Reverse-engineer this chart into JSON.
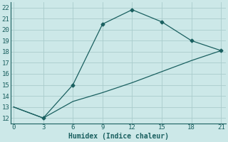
{
  "xlabel": "Humidex (Indice chaleur)",
  "ylabel": "",
  "bg_color": "#cce8e8",
  "grid_color": "#aacccc",
  "line_color": "#1a6060",
  "upper_x": [
    0,
    3,
    6,
    9,
    12,
    15,
    18,
    21
  ],
  "upper_y": [
    13,
    12,
    15,
    20.5,
    21.8,
    20.7,
    19.0,
    18.1
  ],
  "lower_x": [
    0,
    3,
    6,
    9,
    12,
    15,
    18,
    21
  ],
  "lower_y": [
    13,
    12,
    13.5,
    14.3,
    15.2,
    16.2,
    17.2,
    18.1
  ],
  "xlim": [
    -0.3,
    21.5
  ],
  "ylim": [
    11.5,
    22.5
  ],
  "xticks": [
    0,
    3,
    6,
    9,
    12,
    15,
    18,
    21
  ],
  "yticks": [
    12,
    13,
    14,
    15,
    16,
    17,
    18,
    19,
    20,
    21,
    22
  ],
  "marker": "D",
  "marker_size": 2.5,
  "line_width": 0.9,
  "xlabel_fontsize": 7,
  "tick_fontsize": 6.5
}
